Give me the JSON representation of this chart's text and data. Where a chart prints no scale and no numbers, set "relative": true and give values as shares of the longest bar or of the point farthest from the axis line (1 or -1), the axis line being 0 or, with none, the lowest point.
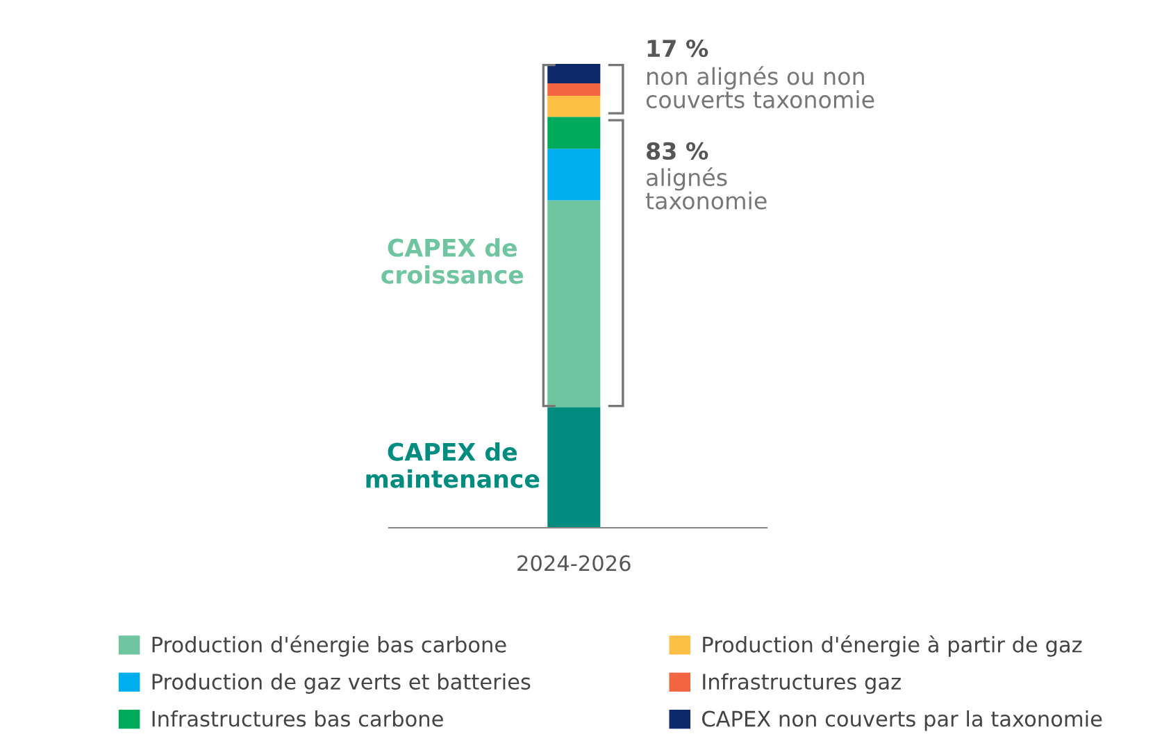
{
  "chart_data": {
    "type": "bar",
    "stacked": true,
    "relative": true,
    "categories": [
      "2024-2026"
    ],
    "series": [
      {
        "name": "CAPEX de maintenance",
        "color": "#008c7f",
        "values": [
          0.26
        ]
      },
      {
        "name": "Production d'énergie bas carbone",
        "color": "#6fc5a0",
        "values": [
          0.446
        ]
      },
      {
        "name": "Production de gaz verts et batteries",
        "color": "#00aeef",
        "values": [
          0.111
        ]
      },
      {
        "name": "Infrastructures bas carbone",
        "color": "#00aa5b",
        "values": [
          0.069
        ]
      },
      {
        "name": "Production d'énergie à partir de gaz",
        "color": "#fdbf45",
        "values": [
          0.045
        ]
      },
      {
        "name": "Infrastructures gaz",
        "color": "#f26641",
        "values": [
          0.027
        ]
      },
      {
        "name": "CAPEX non couverts par la taxonomie",
        "color": "#0e2a6b",
        "values": [
          0.042
        ]
      }
    ],
    "annotations": [
      "17 %",
      "non alignés ou non\ncouverts taxonomie",
      "83 %",
      "alignés\ntaxonomie",
      "CAPEX de\ncroissance"
    ],
    "legend": "bottom",
    "grid": false
  }
}
